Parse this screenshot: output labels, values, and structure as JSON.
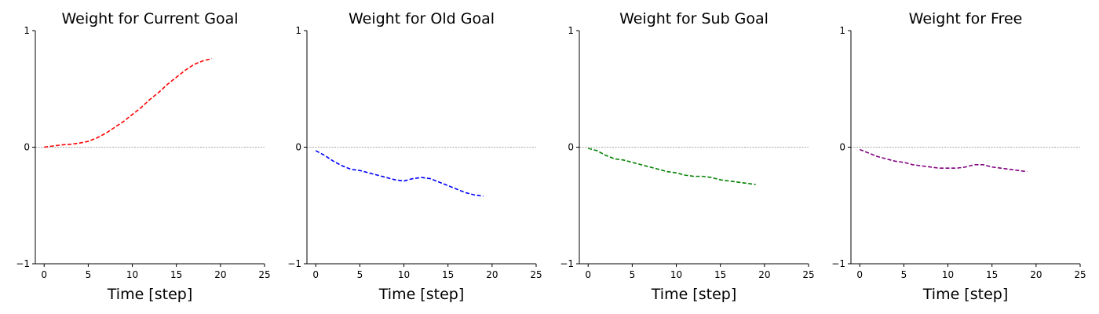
{
  "chart_data": [
    {
      "type": "line",
      "title": "Weight for Current Goal",
      "xlabel": "Time [step]",
      "ylabel": "",
      "xlim": [
        -1,
        25
      ],
      "ylim": [
        -1,
        1
      ],
      "xticks": [
        0,
        5,
        10,
        15,
        20,
        25
      ],
      "yticks": [
        -1,
        0,
        1
      ],
      "reference_line_y": 0,
      "grid": false,
      "series": [
        {
          "color": "#ff0000",
          "style": "dashed",
          "x": [
            0,
            1,
            2,
            3,
            4,
            5,
            6,
            7,
            8,
            9,
            10,
            11,
            12,
            13,
            14,
            15,
            16,
            17,
            18,
            19
          ],
          "values": [
            0.0,
            0.01,
            0.02,
            0.025,
            0.035,
            0.05,
            0.08,
            0.12,
            0.17,
            0.22,
            0.28,
            0.34,
            0.41,
            0.47,
            0.54,
            0.6,
            0.66,
            0.71,
            0.74,
            0.76
          ]
        }
      ]
    },
    {
      "type": "line",
      "title": "Weight for Old Goal",
      "xlabel": "Time [step]",
      "ylabel": "",
      "xlim": [
        -1,
        25
      ],
      "ylim": [
        -1,
        1
      ],
      "xticks": [
        0,
        5,
        10,
        15,
        20,
        25
      ],
      "yticks": [
        -1,
        0,
        1
      ],
      "reference_line_y": 0,
      "grid": false,
      "series": [
        {
          "color": "#0000ff",
          "style": "dashed",
          "x": [
            0,
            1,
            2,
            3,
            4,
            5,
            6,
            7,
            8,
            9,
            10,
            11,
            12,
            13,
            14,
            15,
            16,
            17,
            18,
            19
          ],
          "values": [
            -0.03,
            -0.07,
            -0.12,
            -0.16,
            -0.19,
            -0.2,
            -0.22,
            -0.24,
            -0.26,
            -0.28,
            -0.29,
            -0.27,
            -0.26,
            -0.27,
            -0.3,
            -0.33,
            -0.36,
            -0.39,
            -0.41,
            -0.42
          ]
        }
      ]
    },
    {
      "type": "line",
      "title": "Weight for Sub Goal",
      "xlabel": "Time [step]",
      "ylabel": "",
      "xlim": [
        -1,
        25
      ],
      "ylim": [
        -1,
        1
      ],
      "xticks": [
        0,
        5,
        10,
        15,
        20,
        25
      ],
      "yticks": [
        -1,
        0,
        1
      ],
      "reference_line_y": 0,
      "grid": false,
      "series": [
        {
          "color": "#008000",
          "style": "dashed",
          "x": [
            0,
            1,
            2,
            3,
            4,
            5,
            6,
            7,
            8,
            9,
            10,
            11,
            12,
            13,
            14,
            15,
            16,
            17,
            18,
            19
          ],
          "values": [
            -0.01,
            -0.03,
            -0.07,
            -0.1,
            -0.11,
            -0.13,
            -0.15,
            -0.17,
            -0.19,
            -0.21,
            -0.22,
            -0.24,
            -0.25,
            -0.25,
            -0.26,
            -0.28,
            -0.29,
            -0.3,
            -0.31,
            -0.32
          ]
        }
      ]
    },
    {
      "type": "line",
      "title": "Weight for Free",
      "xlabel": "Time [step]",
      "ylabel": "",
      "xlim": [
        -1,
        25
      ],
      "ylim": [
        -1,
        1
      ],
      "xticks": [
        0,
        5,
        10,
        15,
        20,
        25
      ],
      "yticks": [
        -1,
        0,
        1
      ],
      "reference_line_y": 0,
      "grid": false,
      "series": [
        {
          "color": "#800080",
          "style": "dashed",
          "x": [
            0,
            1,
            2,
            3,
            4,
            5,
            6,
            7,
            8,
            9,
            10,
            11,
            12,
            13,
            14,
            15,
            16,
            17,
            18,
            19
          ],
          "values": [
            -0.02,
            -0.05,
            -0.08,
            -0.1,
            -0.12,
            -0.13,
            -0.15,
            -0.16,
            -0.17,
            -0.18,
            -0.18,
            -0.18,
            -0.17,
            -0.15,
            -0.15,
            -0.17,
            -0.18,
            -0.19,
            -0.2,
            -0.21
          ]
        }
      ]
    }
  ]
}
